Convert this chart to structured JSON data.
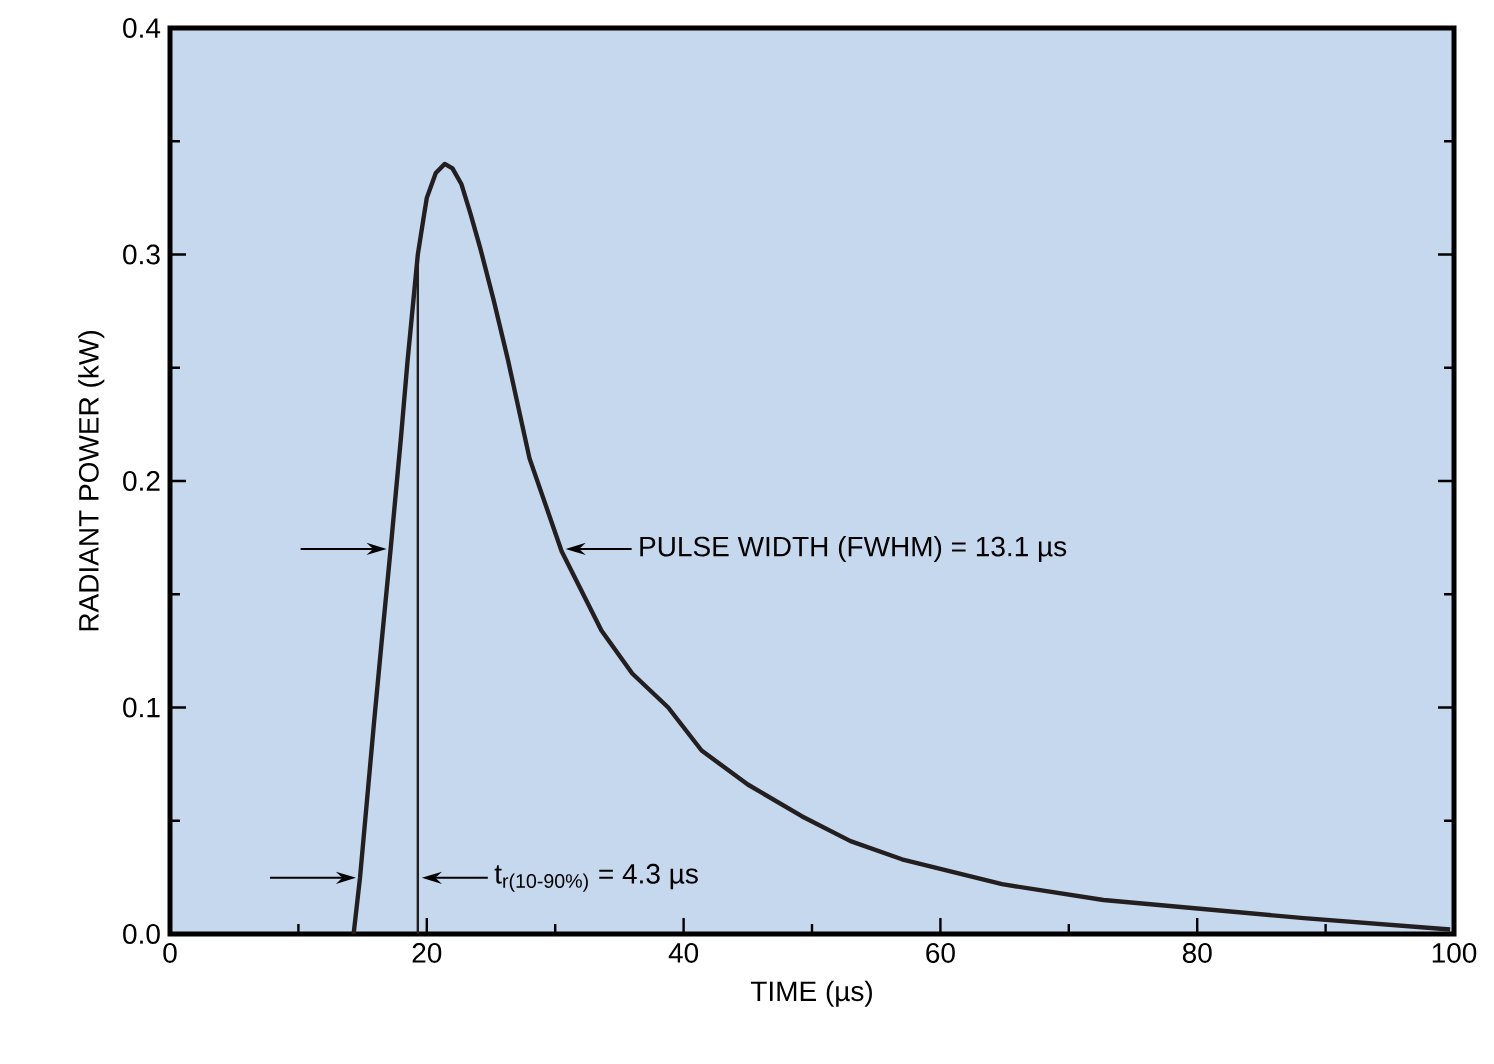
{
  "chart_data": {
    "type": "line",
    "xlabel": "TIME (µs)",
    "ylabel": "RADIANT POWER (kW)",
    "xlim": [
      0,
      100
    ],
    "ylim": [
      0,
      0.4
    ],
    "xticks": [
      0,
      20,
      40,
      60,
      80,
      100
    ],
    "yticks": [
      {
        "value": 0,
        "label": "0.0"
      },
      0.1,
      0.2,
      0.3,
      0.4
    ],
    "grid": false,
    "marker": "none",
    "line_style": "solid",
    "series": [
      {
        "color": "#231f20",
        "x": [
          14.3,
          14.8,
          15.9,
          16.5,
          17.2,
          18.0,
          18.5,
          19.3,
          19.8,
          20.0,
          20.7,
          21.4,
          22.0,
          22.7,
          23.4,
          24.2,
          25.2,
          26.3,
          28.0,
          30.5,
          33.6,
          36.0,
          38.8,
          41.4,
          45.0,
          49.2,
          53.0,
          57.0,
          64.8,
          72.7,
          80.5,
          88.3,
          99.7
        ],
        "values": [
          0,
          0.025,
          0.094,
          0.13,
          0.171,
          0.22,
          0.253,
          0.3,
          0.318,
          0.325,
          0.336,
          0.34,
          0.338,
          0.331,
          0.318,
          0.302,
          0.28,
          0.254,
          0.21,
          0.169,
          0.134,
          0.115,
          0.1,
          0.081,
          0.066,
          0.052,
          0.041,
          0.033,
          0.022,
          0.015,
          0.011,
          0.007,
          0.002
        ]
      },
      {
        "color": "#231f20",
        "x": [
          19.3,
          19.3
        ],
        "values": [
          0,
          0.3
        ]
      }
    ],
    "annotations": [
      {
        "text": "PULSE WIDTH (FWHM) = 13.1 µs",
        "x": 30.5,
        "y": 0.17
      },
      "t$_{r(10-90%)}$ = 4.3 µs"
    ]
  }
}
